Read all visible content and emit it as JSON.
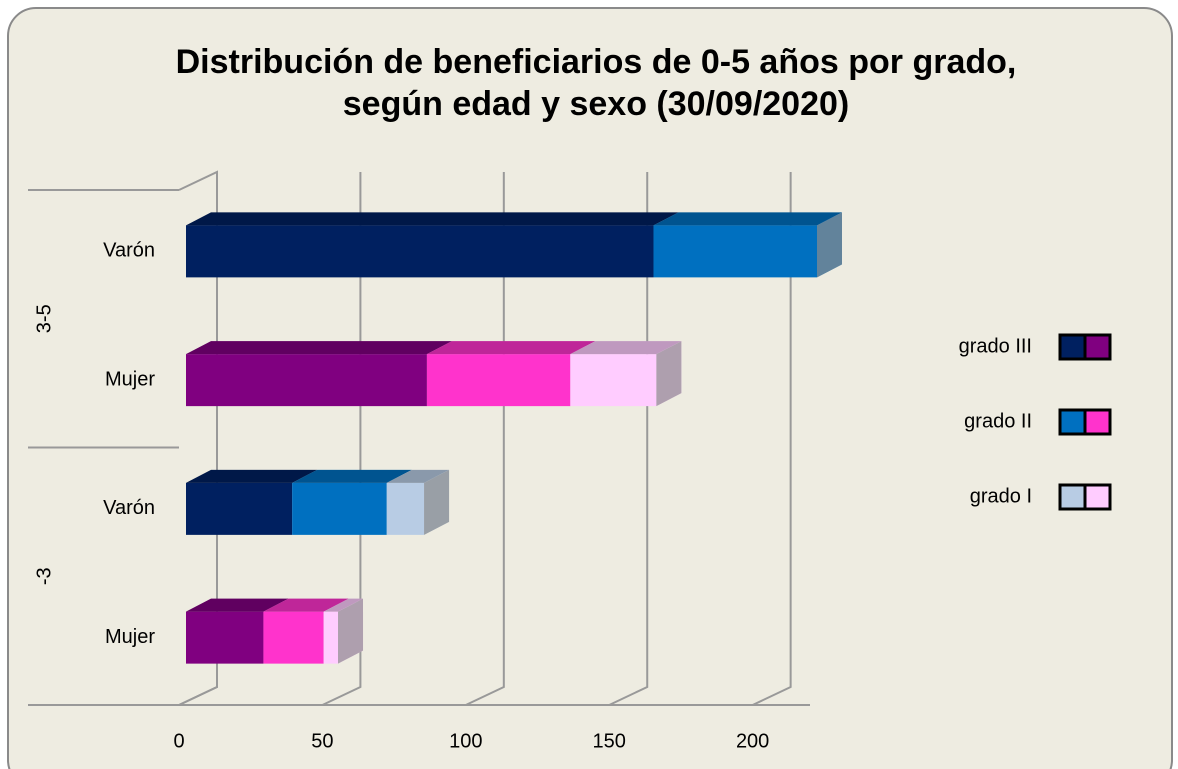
{
  "chart_data": {
    "type": "bar3d_stacked_h",
    "title": [
      "Distribución de beneficiarios de 0-5 años por grado,",
      "según edad y sexo (30/09/2020)"
    ],
    "categories": [
      "Varón",
      "Mujer",
      "Varón",
      "Mujer"
    ],
    "groups": [
      "3-5",
      "3-5",
      "-3",
      "-3"
    ],
    "series": [
      {
        "name": "grado III",
        "colors": [
          "#002060",
          "#800080",
          "#002060",
          "#800080"
        ],
        "values": [
          163,
          84,
          37,
          27
        ]
      },
      {
        "name": "grado II",
        "colors": [
          "#0070c0",
          "#ff33cc",
          "#0070c0",
          "#ff33cc"
        ],
        "values": [
          57,
          50,
          33,
          21
        ]
      },
      {
        "name": "grado I",
        "colors": [
          "#b8cce4",
          "#ffccff",
          "#b8cce4",
          "#ffccff"
        ],
        "values": [
          0,
          30,
          13,
          5
        ]
      }
    ],
    "xlim": [
      0,
      220
    ],
    "xticks": [
      0,
      50,
      100,
      150,
      200
    ],
    "grid": true,
    "legend": "right"
  }
}
